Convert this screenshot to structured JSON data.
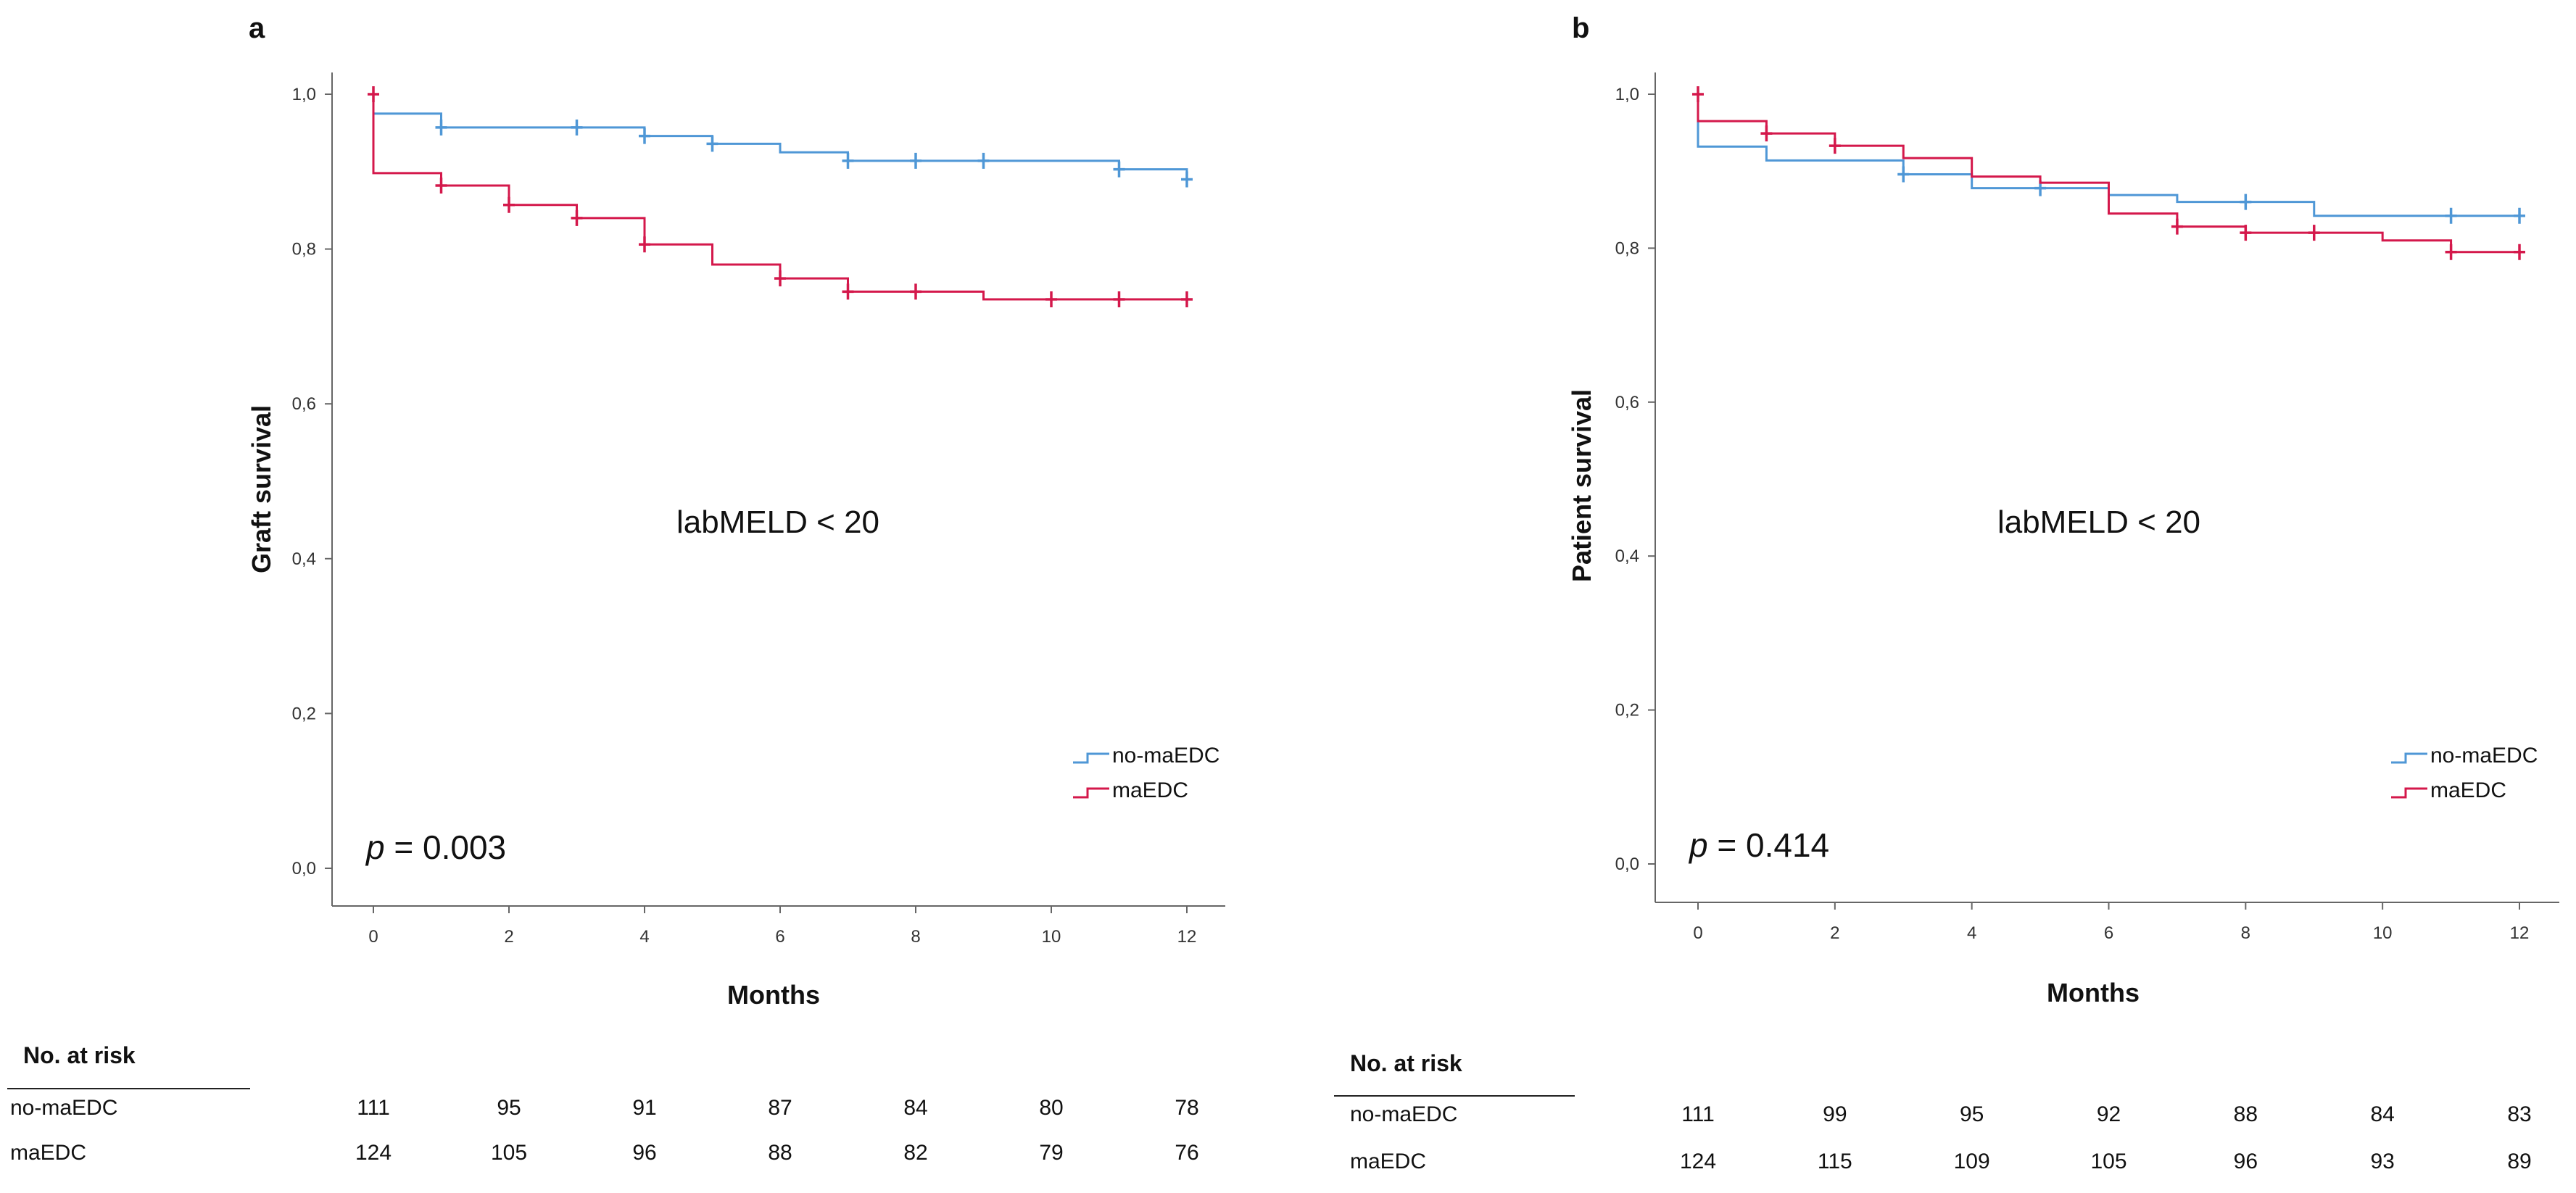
{
  "colors": {
    "no_maedc": "#4f97d6",
    "maedc": "#d4184b",
    "axis": "#666666"
  },
  "chart_data": [
    {
      "panel": "a",
      "type": "line",
      "subtype": "kaplan-meier",
      "ylabel": "Graft survival",
      "xlabel": "Months",
      "annotation": "labMELD < 20",
      "p_prefix": "p",
      "p_rest": " = 0.003",
      "xlim": [
        0,
        12
      ],
      "ylim": [
        0,
        1.05
      ],
      "xticks": [
        "0",
        "2",
        "4",
        "6",
        "8",
        "10",
        "12"
      ],
      "yticks": [
        "0,0",
        "0,2",
        "0,4",
        "0,6",
        "0,8",
        "1,0"
      ],
      "legend_position": "lower-right",
      "series": [
        {
          "name": "no-maEDC",
          "steps": [
            [
              0,
              0.975
            ],
            [
              1,
              0.957
            ],
            [
              4,
              0.946
            ],
            [
              5,
              0.936
            ],
            [
              6,
              0.925
            ],
            [
              7,
              0.914
            ],
            [
              11,
              0.903
            ],
            [
              12,
              0.89
            ]
          ],
          "censors": [
            [
              1,
              0.957
            ],
            [
              3,
              0.957
            ],
            [
              4,
              0.946
            ],
            [
              5,
              0.936
            ],
            [
              7,
              0.914
            ],
            [
              8,
              0.914
            ],
            [
              9,
              0.914
            ],
            [
              11,
              0.903
            ],
            [
              12,
              0.89
            ]
          ]
        },
        {
          "name": "maEDC",
          "steps": [
            [
              0,
              0.898
            ],
            [
              1,
              0.882
            ],
            [
              2,
              0.857
            ],
            [
              3,
              0.84
            ],
            [
              4,
              0.806
            ],
            [
              5,
              0.78
            ],
            [
              6,
              0.762
            ],
            [
              7,
              0.745
            ],
            [
              9,
              0.735
            ],
            [
              12,
              0.735
            ]
          ],
          "censors": [
            [
              0,
              1.0
            ],
            [
              1,
              0.882
            ],
            [
              2,
              0.857
            ],
            [
              3,
              0.84
            ],
            [
              4,
              0.806
            ],
            [
              6,
              0.762
            ],
            [
              7,
              0.745
            ],
            [
              8,
              0.745
            ],
            [
              10,
              0.735
            ],
            [
              11,
              0.735
            ],
            [
              12,
              0.735
            ]
          ]
        }
      ],
      "risk_table": {
        "header": "No. at risk",
        "rows": [
          {
            "label": "no-maEDC",
            "values": [
              "111",
              "95",
              "91",
              "87",
              "84",
              "80",
              "78"
            ]
          },
          {
            "label": "maEDC",
            "values": [
              "124",
              "105",
              "96",
              "88",
              "82",
              "79",
              "76"
            ]
          }
        ]
      }
    },
    {
      "panel": "b",
      "type": "line",
      "subtype": "kaplan-meier",
      "ylabel": "Patient survival",
      "xlabel": "Months",
      "annotation": "labMELD < 20",
      "p_prefix": "p",
      "p_rest": " = 0.414",
      "xlim": [
        0,
        12
      ],
      "ylim": [
        0,
        1.05
      ],
      "xticks": [
        "0",
        "2",
        "4",
        "6",
        "8",
        "10",
        "12"
      ],
      "yticks": [
        "0,0",
        "0,2",
        "0,4",
        "0,6",
        "0,8",
        "1,0"
      ],
      "legend_position": "lower-right",
      "series": [
        {
          "name": "no-maEDC",
          "steps": [
            [
              0,
              0.932
            ],
            [
              1,
              0.914
            ],
            [
              3,
              0.896
            ],
            [
              4,
              0.878
            ],
            [
              6,
              0.869
            ],
            [
              7,
              0.86
            ],
            [
              9,
              0.842
            ],
            [
              12,
              0.842
            ]
          ],
          "censors": [
            [
              3,
              0.896
            ],
            [
              5,
              0.878
            ],
            [
              8,
              0.86
            ],
            [
              11,
              0.842
            ],
            [
              12,
              0.842
            ]
          ]
        },
        {
          "name": "maEDC",
          "steps": [
            [
              0,
              0.965
            ],
            [
              1,
              0.949
            ],
            [
              2,
              0.933
            ],
            [
              3,
              0.917
            ],
            [
              4,
              0.893
            ],
            [
              5,
              0.885
            ],
            [
              6,
              0.845
            ],
            [
              7,
              0.828
            ],
            [
              8,
              0.82
            ],
            [
              10,
              0.81
            ],
            [
              11,
              0.795
            ],
            [
              12,
              0.795
            ]
          ],
          "censors": [
            [
              0,
              1.0
            ],
            [
              1,
              0.949
            ],
            [
              2,
              0.933
            ],
            [
              7,
              0.828
            ],
            [
              8,
              0.82
            ],
            [
              9,
              0.82
            ],
            [
              11,
              0.795
            ],
            [
              12,
              0.795
            ]
          ]
        }
      ],
      "risk_table": {
        "header": "No. at risk",
        "rows": [
          {
            "label": "no-maEDC",
            "values": [
              "111",
              "99",
              "95",
              "92",
              "88",
              "84",
              "83"
            ]
          },
          {
            "label": "maEDC",
            "values": [
              "124",
              "115",
              "109",
              "105",
              "96",
              "93",
              "89"
            ]
          }
        ]
      }
    }
  ]
}
